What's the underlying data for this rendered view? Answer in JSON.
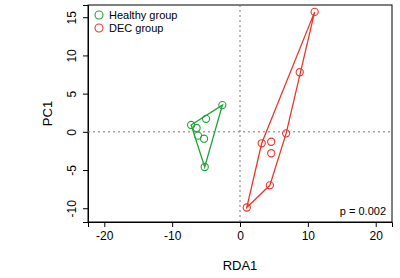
{
  "chart_data": {
    "type": "scatter",
    "x_label": "RDA1",
    "y_label": "PC1",
    "xlim": [
      -22.4,
      22.4
    ],
    "ylim": [
      -11.8,
      16.6
    ],
    "xticks": [
      -20,
      -10,
      0,
      10,
      20
    ],
    "yticks": [
      -10,
      -5,
      0,
      5,
      10,
      15
    ],
    "grid": false,
    "legend": "top-left",
    "marker": "circle",
    "reference_lines": {
      "x": [
        0
      ],
      "y": [
        0
      ]
    },
    "annotations": [
      {
        "text": "p = 0.002"
      }
    ],
    "series": [
      {
        "name": "Healthy group",
        "color": "#22a33a",
        "x": [
          -7.2,
          -6.4,
          -6.2,
          -5.0,
          -5.3,
          -2.6,
          -5.2
        ],
        "values": [
          0.9,
          0.5,
          -0.5,
          1.7,
          -0.9,
          3.5,
          -4.6
        ]
      },
      {
        "name": "DEC group",
        "color": "#e8372c",
        "x": [
          11.0,
          8.8,
          6.8,
          4.6,
          3.2,
          4.6,
          4.4,
          1.0
        ],
        "values": [
          15.7,
          7.8,
          -0.2,
          -1.3,
          -1.5,
          -2.8,
          -7.0,
          -9.9
        ]
      }
    ]
  }
}
